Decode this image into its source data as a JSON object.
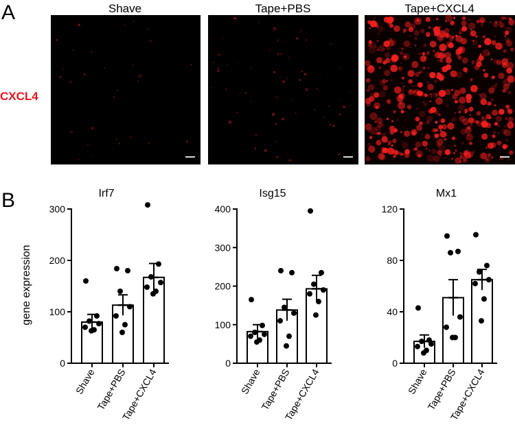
{
  "panel_a": {
    "letter": "A",
    "row_label": "CXCL4",
    "row_label_color": "#e8141b",
    "conditions": [
      "Shave",
      "Tape+PBS",
      "Tape+CXCL4"
    ],
    "signal_levels": [
      0.05,
      0.12,
      0.95
    ],
    "signal_color": "#ff2020"
  },
  "panel_b": {
    "letter": "B",
    "ylabel": "gene expression"
  },
  "chart_data": [
    {
      "type": "bar",
      "title": "Irf7",
      "ylabel": "gene expression",
      "categories": [
        "Shave",
        "Tape+PBS",
        "Tape+CXCL4"
      ],
      "values": [
        80,
        113,
        167
      ],
      "sem": [
        15,
        20,
        27
      ],
      "points": [
        [
          160,
          92,
          82,
          77,
          70,
          65,
          63
        ],
        [
          184,
          180,
          140,
          110,
          92,
          75,
          60
        ],
        [
          308,
          193,
          168,
          157,
          148,
          140,
          135
        ]
      ],
      "ylim": [
        0,
        300
      ],
      "yticks": [
        0,
        100,
        200,
        300
      ]
    },
    {
      "type": "bar",
      "title": "Isg15",
      "ylabel": "",
      "categories": [
        "Shave",
        "Tape+PBS",
        "Tape+CXCL4"
      ],
      "values": [
        82,
        138,
        193
      ],
      "sem": [
        18,
        28,
        35
      ],
      "points": [
        [
          165,
          98,
          80,
          75,
          70,
          60,
          55
        ],
        [
          240,
          235,
          145,
          130,
          110,
          70,
          45
        ],
        [
          395,
          235,
          205,
          190,
          180,
          160,
          125
        ]
      ],
      "ylim": [
        0,
        400
      ],
      "yticks": [
        0,
        100,
        200,
        300,
        400
      ]
    },
    {
      "type": "bar",
      "title": "Mx1",
      "ylabel": "",
      "categories": [
        "Shave",
        "Tape+PBS",
        "Tape+CXCL4"
      ],
      "values": [
        17,
        51,
        65
      ],
      "sem": [
        5,
        14,
        8
      ],
      "points": [
        [
          43,
          18,
          17,
          15,
          13,
          10,
          8
        ],
        [
          99,
          87,
          86,
          36,
          28,
          20,
          20
        ],
        [
          100,
          76,
          71,
          65,
          62,
          50,
          33
        ]
      ],
      "ylim": [
        0,
        120
      ],
      "yticks": [
        0,
        40,
        80,
        120
      ]
    }
  ]
}
